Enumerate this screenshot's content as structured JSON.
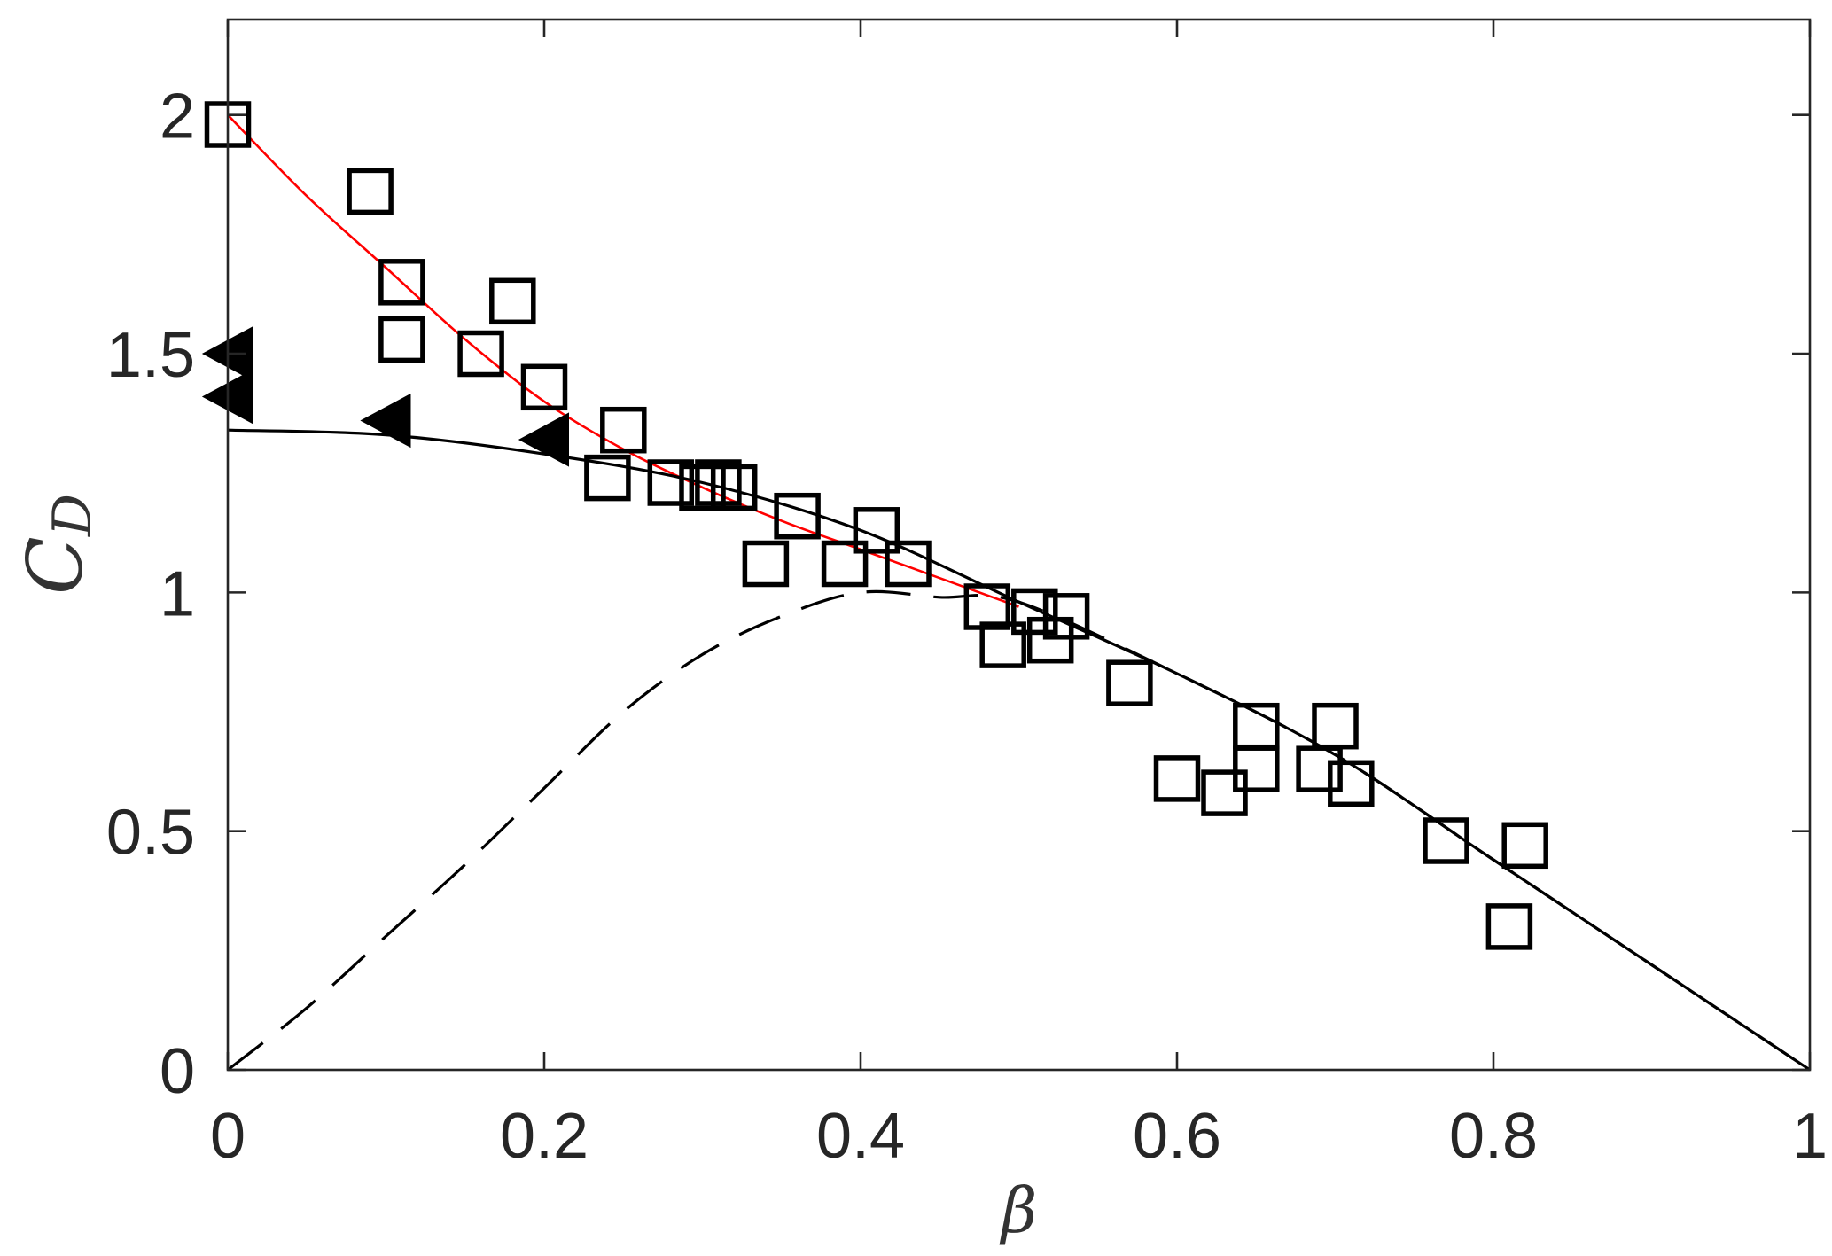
{
  "chart_data": {
    "type": "scatter",
    "xlabel": "β",
    "ylabel": {
      "main": "C",
      "subscript": "D"
    },
    "xlim": [
      0,
      1
    ],
    "ylim": [
      0,
      2.2
    ],
    "xticks": [
      0,
      0.2,
      0.4,
      0.6,
      0.8,
      1
    ],
    "xtick_labels": [
      "0",
      "0.2",
      "0.4",
      "0.6",
      "0.8",
      "1"
    ],
    "yticks": [
      0,
      0.5,
      1,
      1.5,
      2
    ],
    "ytick_labels": [
      "0",
      "0.5",
      "1",
      "1.5",
      "2"
    ],
    "grid": false,
    "legend": "none",
    "axis_color": "#262626",
    "series": [
      {
        "kind": "scatter",
        "marker": "square",
        "filled": false,
        "color": "#000000",
        "x": [
          0.0,
          0.09,
          0.11,
          0.11,
          0.16,
          0.18,
          0.2,
          0.25,
          0.24,
          0.28,
          0.3,
          0.31,
          0.32,
          0.34,
          0.36,
          0.39,
          0.41,
          0.43,
          0.48,
          0.49,
          0.51,
          0.52,
          0.53,
          0.57,
          0.6,
          0.63,
          0.65,
          0.65,
          0.69,
          0.7,
          0.71,
          0.77,
          0.82,
          0.81
        ],
        "y": [
          1.98,
          1.84,
          1.65,
          1.53,
          1.5,
          1.61,
          1.43,
          1.34,
          1.24,
          1.23,
          1.22,
          1.23,
          1.22,
          1.06,
          1.16,
          1.06,
          1.13,
          1.06,
          0.97,
          0.89,
          0.96,
          0.9,
          0.95,
          0.81,
          0.61,
          0.58,
          0.63,
          0.72,
          0.63,
          0.72,
          0.6,
          0.48,
          0.47,
          0.3
        ]
      },
      {
        "kind": "scatter",
        "marker": "triangle-left",
        "filled": true,
        "color": "#000000",
        "x": [
          0.0,
          0.0,
          0.1,
          0.2
        ],
        "y": [
          1.5,
          1.41,
          1.36,
          1.32
        ]
      },
      {
        "kind": "line",
        "line_style": "solid",
        "color": "#ff0000",
        "x": [
          0,
          0.05,
          0.1,
          0.15,
          0.2,
          0.25,
          0.3,
          0.35,
          0.4,
          0.45,
          0.5
        ],
        "y": [
          2.0,
          1.83,
          1.68,
          1.53,
          1.4,
          1.3,
          1.22,
          1.15,
          1.09,
          1.03,
          0.97
        ]
      },
      {
        "kind": "line",
        "line_style": "solid",
        "color": "#000000",
        "x": [
          0,
          0.1,
          0.2,
          0.3,
          0.4,
          0.5,
          0.6,
          0.7,
          0.8,
          0.9,
          1.0
        ],
        "y": [
          1.34,
          1.33,
          1.29,
          1.23,
          1.13,
          0.98,
          0.83,
          0.66,
          0.44,
          0.22,
          0
        ]
      },
      {
        "kind": "line",
        "line_style": "dashed",
        "color": "#000000",
        "x": [
          0,
          0.05,
          0.1,
          0.15,
          0.2,
          0.25,
          0.3,
          0.35,
          0.4,
          0.45,
          0.5,
          0.6,
          0.7,
          0.8,
          0.9,
          1.0
        ],
        "y": [
          0,
          0.13,
          0.28,
          0.43,
          0.59,
          0.75,
          0.87,
          0.95,
          1.0,
          0.99,
          0.98,
          0.83,
          0.66,
          0.44,
          0.22,
          0
        ]
      }
    ]
  }
}
